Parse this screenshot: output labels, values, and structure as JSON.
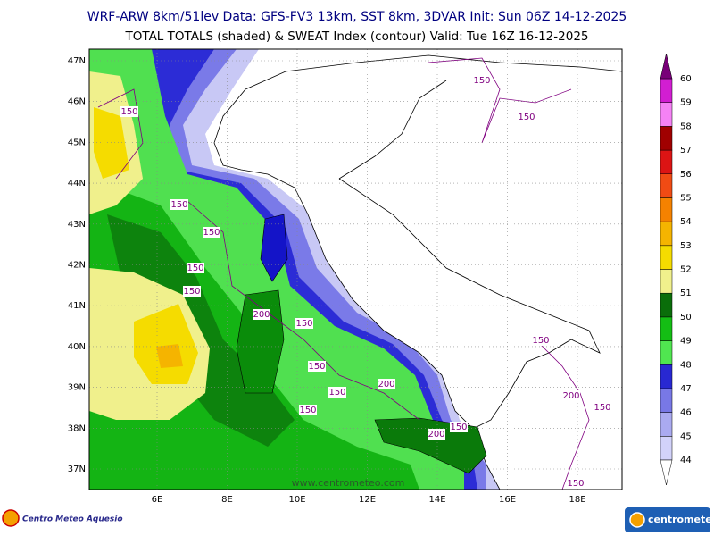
{
  "header": {
    "line1": "WRF-ARW 8km/51lev  Data: GFS-FV3 13km, SST 8km, 3DVAR  Init: Sun 06Z 14-12-2025",
    "line2": "TOTAL TOTALS (shaded) & SWEAT Index (contour)  Valid: Tue 16Z 16-12-2025"
  },
  "map": {
    "lat_labels": [
      "47N",
      "46N",
      "45N",
      "44N",
      "43N",
      "42N",
      "41N",
      "40N",
      "39N",
      "38N",
      "37N"
    ],
    "lon_labels": [
      "6E",
      "8E",
      "10E",
      "12E",
      "14E",
      "16E",
      "18E"
    ],
    "contour_labels": [
      "150",
      "150",
      "150",
      "150",
      "150",
      "150",
      "150",
      "200",
      "150",
      "150",
      "150",
      "200",
      "150",
      "200",
      "150",
      "150",
      "200",
      "150",
      "150"
    ],
    "watermark": "www.centrometeo.com"
  },
  "colorbar": {
    "levels": [
      44,
      45,
      46,
      47,
      48,
      49,
      50,
      51,
      52,
      53,
      54,
      55,
      56,
      57,
      58,
      59,
      60
    ],
    "colors": [
      "#d2d2fa",
      "#aaaaf0",
      "#7878e6",
      "#2828d2",
      "#50e650",
      "#14be14",
      "#0a6e0a",
      "#f0f08c",
      "#f5dc00",
      "#f5b400",
      "#f58200",
      "#f04b14",
      "#dc1414",
      "#a00000",
      "#f582f5",
      "#d21ed2",
      "#780078"
    ]
  },
  "footer": {
    "left_logo": "Centro Meteo Aquesio",
    "right_logo": "centrometeo"
  }
}
